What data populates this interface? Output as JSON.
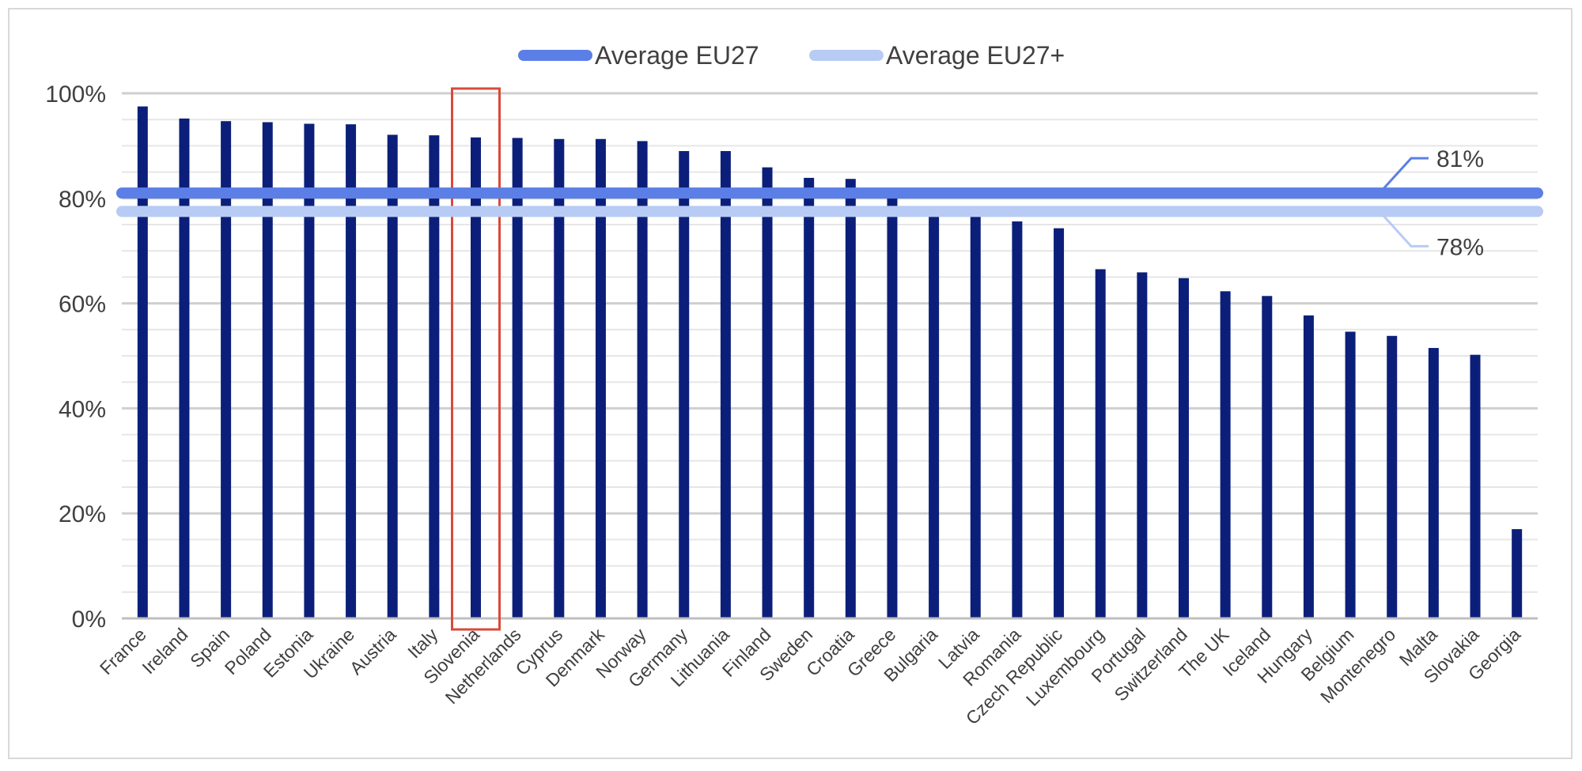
{
  "chart_data": {
    "type": "bar",
    "categories": [
      "France",
      "Ireland",
      "Spain",
      "Poland",
      "Estonia",
      "Ukraine",
      "Austria",
      "Italy",
      "Slovenia",
      "Netherlands",
      "Cyprus",
      "Denmark",
      "Norway",
      "Germany",
      "Lithuania",
      "Finland",
      "Sweden",
      "Croatia",
      "Greece",
      "Bulgaria",
      "Latvia",
      "Romania",
      "Czech Republic",
      "Luxembourg",
      "Portugal",
      "Switzerland",
      "The UK",
      "Iceland",
      "Hungary",
      "Belgium",
      "Montenegro",
      "Malta",
      "Slovakia",
      "Georgia"
    ],
    "values": [
      97.5,
      95.2,
      94.7,
      94.5,
      94.2,
      94.1,
      92.1,
      92.0,
      91.6,
      91.5,
      91.3,
      91.3,
      90.9,
      89.0,
      89.0,
      85.9,
      83.9,
      83.7,
      81.5,
      77.0,
      76.5,
      75.6,
      74.3,
      66.5,
      65.9,
      64.8,
      62.3,
      61.4,
      57.7,
      54.6,
      53.8,
      51.5,
      50.2,
      17.0
    ],
    "series_color": "#0b1f7a",
    "highlighted_category": "Slovenia",
    "highlight_color": "#d94a3a",
    "ylim": [
      0,
      100
    ],
    "yticks": [
      0,
      20,
      40,
      60,
      80,
      100
    ],
    "ytick_format": "percent",
    "grid": "horizontal major and minor",
    "reference_lines": [
      {
        "name": "Average EU27",
        "value": 81,
        "label": "81%",
        "color": "#5b7fe6"
      },
      {
        "name": "Average EU27+",
        "value": 77.5,
        "label": "78%",
        "color": "#b8cbf4"
      }
    ],
    "legend_position": "top",
    "title": "",
    "xlabel": "",
    "ylabel": ""
  }
}
